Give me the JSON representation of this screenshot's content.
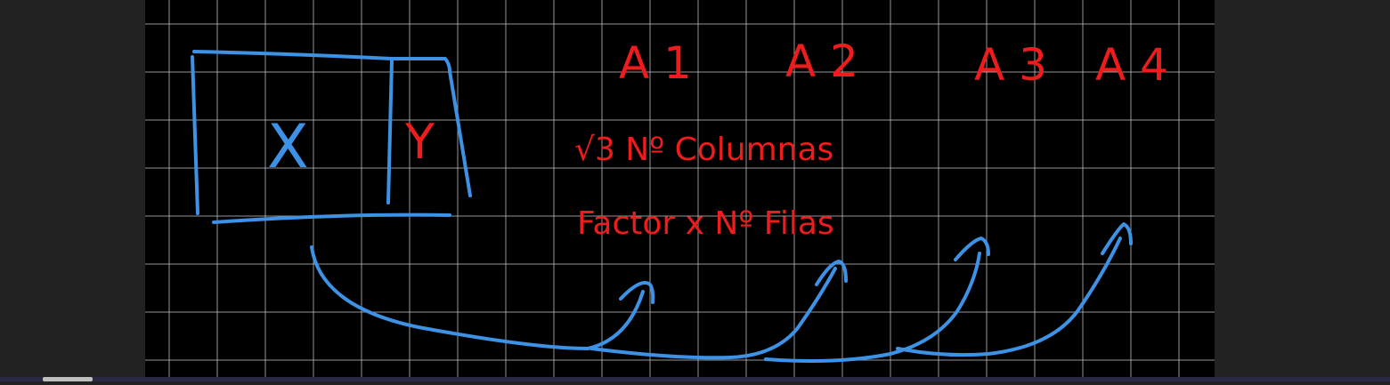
{
  "colors": {
    "frame": "#222222",
    "board": "#000000",
    "grid": "#c8c8c8",
    "blue_ink": "#3d92e6",
    "red_ink": "#ee1c1c"
  },
  "board": {
    "box_label_main": "X",
    "box_label_side": "Y",
    "column_labels": [
      "A 1",
      "A 2",
      "A 3",
      "A 4"
    ],
    "note_line_1": "√3 Nº Columnas",
    "note_line_2": "Factor x Nº Filas"
  }
}
